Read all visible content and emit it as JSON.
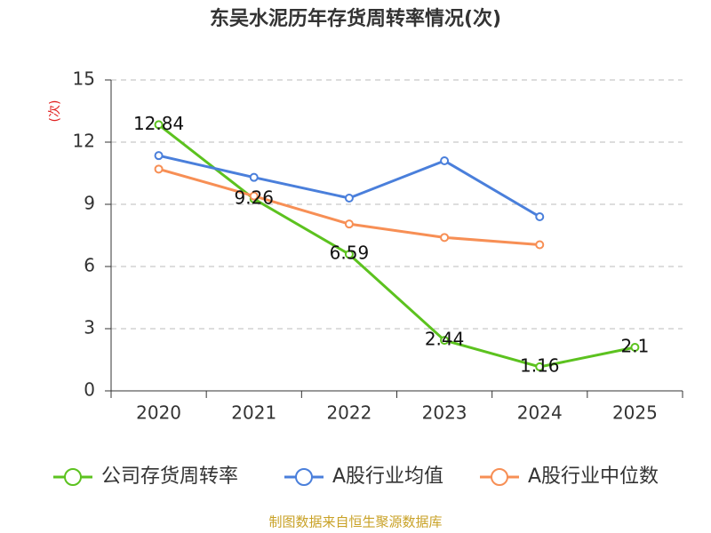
{
  "chart_data": {
    "type": "line",
    "title": "东吴水泥历年存货周转率情况(次)",
    "y_label": "(次)",
    "categories": [
      "2020",
      "2021",
      "2022",
      "2023",
      "2024",
      "2025"
    ],
    "series": [
      {
        "name": "公司存货周转率",
        "color": "#5cc21f",
        "values": [
          12.84,
          9.26,
          6.59,
          2.44,
          1.16,
          2.1
        ]
      },
      {
        "name": "A股行业均值",
        "color": "#4a7fdb",
        "values": [
          11.35,
          10.3,
          9.3,
          11.1,
          8.4,
          null
        ]
      },
      {
        "name": "A股行业中位数",
        "color": "#f78f55",
        "values": [
          10.7,
          9.4,
          8.05,
          7.4,
          7.05,
          null
        ]
      }
    ],
    "ylim": [
      0,
      15
    ],
    "yticks": [
      0,
      3,
      6,
      9,
      12,
      15
    ],
    "grid": true,
    "source": "制图数据来自恒生聚源数据库"
  }
}
